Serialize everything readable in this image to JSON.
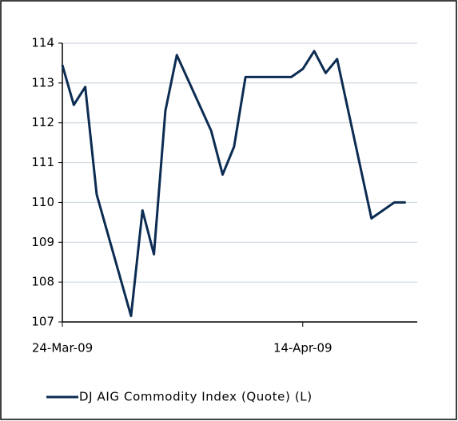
{
  "chart_data": {
    "type": "line",
    "x": [
      "2009-03-24",
      "2009-03-25",
      "2009-03-26",
      "2009-03-27",
      "2009-03-30",
      "2009-03-31",
      "2009-04-01",
      "2009-04-02",
      "2009-04-03",
      "2009-04-06",
      "2009-04-07",
      "2009-04-08",
      "2009-04-09",
      "2009-04-13",
      "2009-04-14",
      "2009-04-15",
      "2009-04-16",
      "2009-04-17",
      "2009-04-20",
      "2009-04-21",
      "2009-04-22",
      "2009-04-23"
    ],
    "series": [
      {
        "name": "DJ AIG Commodity Index (Quote) (L)",
        "color": "#0c2c52",
        "values": [
          113.45,
          112.45,
          112.9,
          110.2,
          107.15,
          109.8,
          108.7,
          112.3,
          113.7,
          111.8,
          110.7,
          111.4,
          113.15,
          113.15,
          113.35,
          113.8,
          113.25,
          113.6,
          109.6,
          109.8,
          110.0,
          110.0
        ]
      }
    ],
    "xlim": [
      "2009-03-24",
      "2009-04-24"
    ],
    "xticks": [
      {
        "value": "2009-03-24",
        "label": "24-Mar-09"
      },
      {
        "value": "2009-04-14",
        "label": "14-Apr-09"
      }
    ],
    "ylim": [
      107,
      114
    ],
    "yticks": [
      107,
      108,
      109,
      110,
      111,
      112,
      113,
      114
    ],
    "grid": true,
    "legend": "bottom"
  }
}
